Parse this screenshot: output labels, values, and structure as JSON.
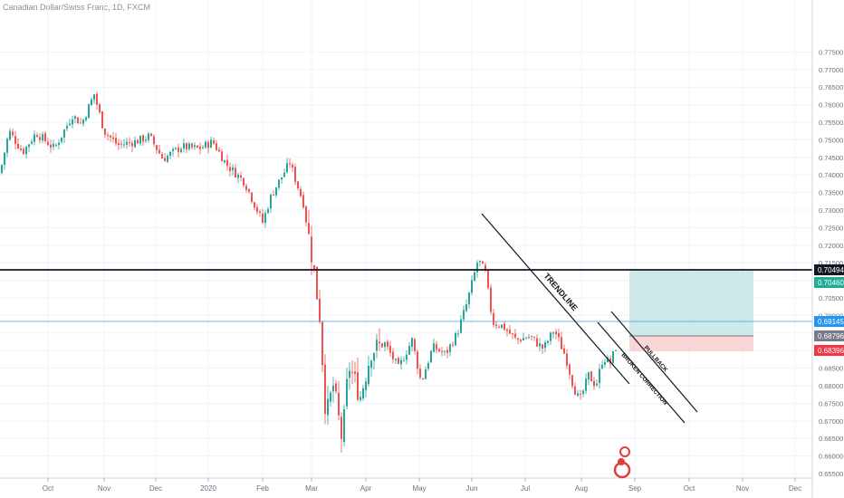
{
  "chart_data": {
    "type": "candlestick",
    "title": "Canadian Dollar/Swiss Franc, 1D, FXCM",
    "x_ticks": [
      "Oct",
      "Nov",
      "Dec",
      "2020",
      "Feb",
      "Mar",
      "Apr",
      "May",
      "Jun",
      "Jul",
      "Aug",
      "Sep",
      "Oct",
      "Nov",
      "Dec"
    ],
    "y_ticks": [
      "0.77500",
      "0.77000",
      "0.76500",
      "0.76000",
      "0.75500",
      "0.75000",
      "0.74500",
      "0.74000",
      "0.73500",
      "0.73000",
      "0.72500",
      "0.72000",
      "0.71500",
      "0.71000",
      "0.70500",
      "0.70000",
      "0.69500",
      "0.69000",
      "0.68500",
      "0.68000",
      "0.67500",
      "0.67000",
      "0.66500",
      "0.66000",
      "0.65500"
    ],
    "ylim": [
      0.6525,
      0.7765
    ],
    "price_path": [
      {
        "t": 0,
        "p": 0.7405
      },
      {
        "t": 10,
        "p": 0.7525
      },
      {
        "t": 25,
        "p": 0.7465
      },
      {
        "t": 40,
        "p": 0.752
      },
      {
        "t": 60,
        "p": 0.7475
      },
      {
        "t": 80,
        "p": 0.757
      },
      {
        "t": 90,
        "p": 0.7545
      },
      {
        "t": 104,
        "p": 0.763
      },
      {
        "t": 115,
        "p": 0.7525
      },
      {
        "t": 130,
        "p": 0.7485
      },
      {
        "t": 150,
        "p": 0.7495
      },
      {
        "t": 165,
        "p": 0.751
      },
      {
        "t": 180,
        "p": 0.7445
      },
      {
        "t": 200,
        "p": 0.748
      },
      {
        "t": 220,
        "p": 0.7475
      },
      {
        "t": 235,
        "p": 0.7495
      },
      {
        "t": 250,
        "p": 0.743
      },
      {
        "t": 270,
        "p": 0.738
      },
      {
        "t": 290,
        "p": 0.7265
      },
      {
        "t": 300,
        "p": 0.7345
      },
      {
        "t": 320,
        "p": 0.7435
      },
      {
        "t": 335,
        "p": 0.732
      },
      {
        "t": 345,
        "p": 0.716
      },
      {
        "t": 353,
        "p": 0.7
      },
      {
        "t": 360,
        "p": 0.671
      },
      {
        "t": 368,
        "p": 0.68
      },
      {
        "t": 378,
        "p": 0.664
      },
      {
        "t": 385,
        "p": 0.686
      },
      {
        "t": 398,
        "p": 0.677
      },
      {
        "t": 410,
        "p": 0.69
      },
      {
        "t": 425,
        "p": 0.692
      },
      {
        "t": 440,
        "p": 0.685
      },
      {
        "t": 455,
        "p": 0.693
      },
      {
        "t": 465,
        "p": 0.681
      },
      {
        "t": 478,
        "p": 0.691
      },
      {
        "t": 492,
        "p": 0.689
      },
      {
        "t": 505,
        "p": 0.695
      },
      {
        "t": 515,
        "p": 0.703
      },
      {
        "t": 528,
        "p": 0.716
      },
      {
        "t": 536,
        "p": 0.712
      },
      {
        "t": 544,
        "p": 0.698
      },
      {
        "t": 555,
        "p": 0.697
      },
      {
        "t": 570,
        "p": 0.693
      },
      {
        "t": 585,
        "p": 0.694
      },
      {
        "t": 600,
        "p": 0.6905
      },
      {
        "t": 612,
        "p": 0.696
      },
      {
        "t": 625,
        "p": 0.688
      },
      {
        "t": 633,
        "p": 0.68
      },
      {
        "t": 640,
        "p": 0.6755
      },
      {
        "t": 650,
        "p": 0.683
      },
      {
        "t": 658,
        "p": 0.68
      },
      {
        "t": 666,
        "p": 0.688
      },
      {
        "t": 674,
        "p": 0.6865
      },
      {
        "t": 682,
        "p": 0.6925
      }
    ],
    "levels": [
      {
        "name": "resistance",
        "value": 0.70494,
        "label": "0.70494",
        "color": "#131722",
        "line": "horizontal-black"
      },
      {
        "name": "target",
        "value": 0.7046,
        "label": "0.70460",
        "color": "#22ab94"
      },
      {
        "name": "current-price",
        "value": 0.69145,
        "label": "0.69145",
        "color": "#2196f3",
        "line": "horizontal-blue"
      },
      {
        "name": "entry",
        "value": 0.68796,
        "label": "0.68796",
        "color": "#787b86"
      },
      {
        "name": "stop",
        "value": 0.68396,
        "label": "0.68396",
        "color": "#f23645"
      }
    ],
    "annotations": [
      {
        "text": "TRENDLINE",
        "kind": "trendline"
      },
      {
        "text": "BROKEN CORRECTION",
        "kind": "channel-lower"
      },
      {
        "text": "PULLBACK",
        "kind": "channel-upper"
      }
    ],
    "colors": {
      "up": "#26a69a",
      "down": "#ef5350",
      "grid": "#f0f3fa"
    },
    "grid": true
  }
}
